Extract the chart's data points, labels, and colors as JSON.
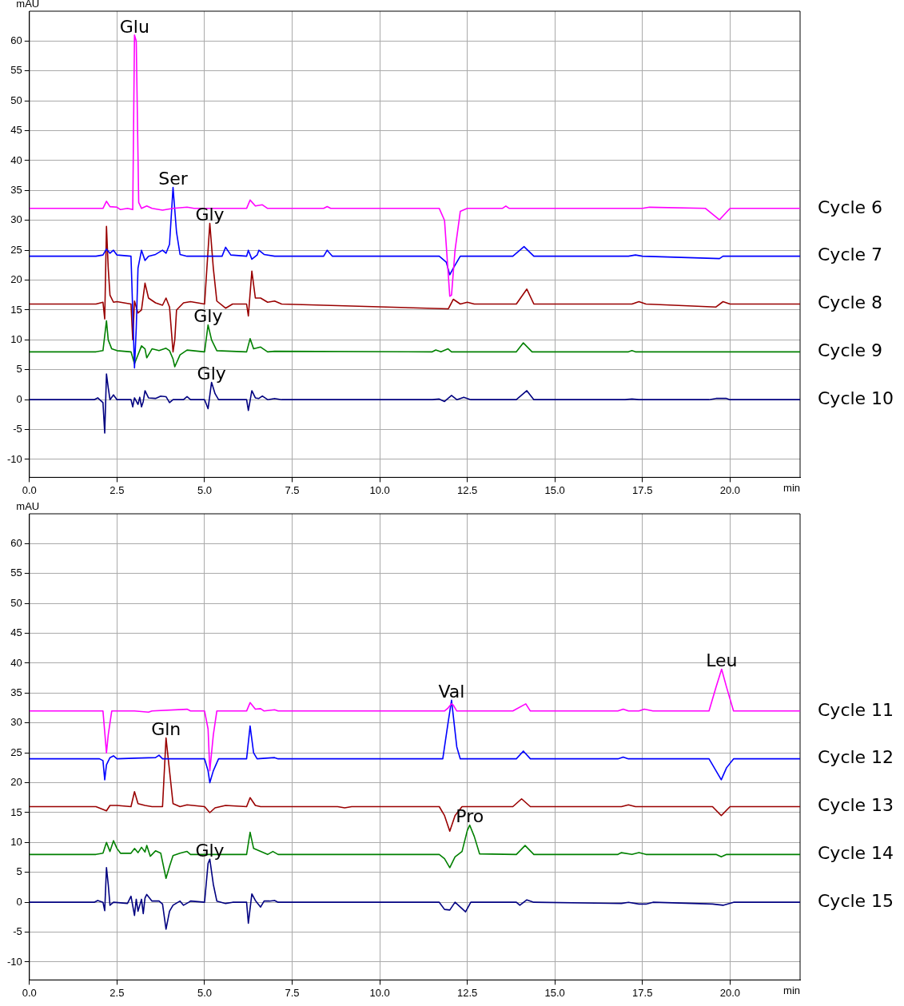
{
  "chart_data": [
    {
      "type": "line",
      "ylabel": "mAU",
      "xlabel": "min",
      "xlim": [
        0,
        22
      ],
      "ylim": [
        -13,
        65
      ],
      "xticks": [
        {
          "value": 0,
          "label": "0.0"
        },
        {
          "value": 2.5,
          "label": "2.5"
        },
        {
          "value": 5,
          "label": "5.0"
        },
        {
          "value": 7.5,
          "label": "7.5"
        },
        {
          "value": 10,
          "label": "10.0"
        },
        {
          "value": 12.5,
          "label": "12.5"
        },
        {
          "value": 15,
          "label": "15.0"
        },
        {
          "value": 17.5,
          "label": "17.5"
        },
        {
          "value": 20,
          "label": "20.0"
        }
      ],
      "yticks": [
        -10,
        -5,
        0,
        5,
        10,
        15,
        20,
        25,
        30,
        35,
        40,
        45,
        50,
        55,
        60
      ],
      "grid": true,
      "legend": false,
      "marker": "none",
      "line_style": "solid",
      "annotations": [
        {
          "text": "Glu",
          "x": 3.0,
          "y": 61
        },
        {
          "text": "Ser",
          "x": 4.1,
          "y": 35.5
        },
        {
          "text": "Gly",
          "x": 5.15,
          "y": 29.5
        },
        {
          "text": "Gly",
          "x": 5.1,
          "y": 12.5
        },
        {
          "text": "Gly",
          "x": 5.2,
          "y": 2.9
        }
      ],
      "series": [
        {
          "name": "Cycle 6",
          "color": "#ff00ff",
          "x": [
            0,
            2.1,
            2.2,
            2.3,
            2.5,
            2.6,
            2.8,
            2.95,
            3.0,
            3.05,
            3.12,
            3.2,
            3.35,
            3.5,
            3.8,
            4.1,
            4.5,
            4.7,
            6.2,
            6.3,
            6.45,
            6.55,
            6.65,
            6.8,
            8.4,
            8.5,
            8.6,
            11.7,
            11.85,
            12.0,
            12.05,
            12.15,
            12.3,
            12.5,
            13.5,
            13.6,
            13.7,
            17.5,
            17.7,
            19.3,
            19.7,
            20.0,
            22
          ],
          "values": [
            32,
            32,
            33.2,
            32.3,
            32.2,
            31.8,
            32,
            31.8,
            61,
            60,
            33,
            32,
            32.4,
            32,
            31.7,
            32,
            32.2,
            32,
            32,
            33.4,
            32.4,
            32.5,
            32.6,
            32,
            32,
            32.3,
            32,
            32,
            30,
            17.3,
            17.5,
            25,
            31.5,
            32,
            32,
            32.4,
            32,
            32,
            32.2,
            32,
            30.1,
            32,
            32
          ]
        },
        {
          "name": "Cycle 7",
          "color": "#0000ff",
          "x": [
            0,
            1.9,
            2.1,
            2.2,
            2.3,
            2.4,
            2.5,
            2.9,
            3.0,
            3.05,
            3.1,
            3.2,
            3.3,
            3.4,
            3.6,
            3.8,
            3.9,
            4.0,
            4.1,
            4.2,
            4.3,
            4.5,
            5.5,
            5.6,
            5.75,
            6.2,
            6.25,
            6.35,
            6.5,
            6.55,
            6.7,
            7.0,
            8.4,
            8.5,
            8.65,
            11.7,
            11.9,
            12.0,
            12.1,
            12.3,
            13.8,
            14.12,
            14.4,
            17.1,
            17.3,
            17.5,
            19.7,
            19.8,
            22
          ],
          "values": [
            24,
            24,
            24.2,
            25.2,
            24.5,
            25,
            24.2,
            24,
            5.3,
            12,
            22,
            25,
            23.3,
            24,
            24.3,
            25,
            24.5,
            26,
            35.5,
            28,
            24.3,
            24,
            24,
            25.5,
            24.2,
            24,
            25,
            23.5,
            24.2,
            25,
            24.3,
            24,
            24,
            25,
            24,
            24,
            23,
            20.9,
            22,
            24,
            24,
            25.6,
            24,
            24,
            24.2,
            24,
            23.6,
            24,
            24
          ]
        },
        {
          "name": "Cycle 8",
          "color": "#990000",
          "x": [
            0,
            1.9,
            2.1,
            2.15,
            2.2,
            2.25,
            2.3,
            2.4,
            2.5,
            2.9,
            2.95,
            3.0,
            3.1,
            3.2,
            3.3,
            3.4,
            3.6,
            3.8,
            3.9,
            4.0,
            4.1,
            4.15,
            4.2,
            4.4,
            4.6,
            5.0,
            5.15,
            5.25,
            5.35,
            5.6,
            5.8,
            6.2,
            6.25,
            6.35,
            6.45,
            6.6,
            6.8,
            7.0,
            7.2,
            11.96,
            12.1,
            12.3,
            12.5,
            12.7,
            13.9,
            14.2,
            14.4,
            17.2,
            17.4,
            17.6,
            19.6,
            19.8,
            20.0,
            22
          ],
          "values": [
            16,
            16,
            16.3,
            13.5,
            29,
            22,
            17.5,
            16.3,
            16.4,
            16,
            10,
            16.5,
            14.5,
            15,
            19.5,
            17,
            16.2,
            15.8,
            17,
            15.5,
            8,
            10,
            15,
            16.2,
            16.4,
            16,
            29.5,
            22,
            16.5,
            15.3,
            16,
            16,
            14,
            21.5,
            17,
            17,
            16.3,
            16.5,
            16,
            15.2,
            16.8,
            16,
            16.3,
            16,
            16,
            18.5,
            16,
            16,
            16.4,
            16,
            15.5,
            16.4,
            16,
            16
          ]
        },
        {
          "name": "Cycle 9",
          "color": "#008000",
          "x": [
            0,
            1.9,
            2.1,
            2.2,
            2.25,
            2.35,
            2.5,
            2.9,
            3.0,
            3.1,
            3.2,
            3.3,
            3.35,
            3.5,
            3.7,
            3.9,
            4.0,
            4.1,
            4.15,
            4.3,
            4.5,
            5.0,
            5.1,
            5.2,
            5.35,
            6.2,
            6.3,
            6.4,
            6.6,
            6.8,
            7.0,
            11.5,
            11.6,
            11.75,
            11.95,
            12.05,
            12.2,
            13.9,
            14.1,
            14.35,
            17.1,
            17.2,
            17.3,
            22
          ],
          "values": [
            8,
            8,
            8.2,
            13.2,
            10,
            8.5,
            8.2,
            8,
            6,
            7.5,
            9,
            8.5,
            7,
            8.5,
            8.2,
            8.6,
            8.2,
            6.8,
            5.5,
            7.5,
            8.3,
            8,
            12.5,
            10,
            8.2,
            8,
            10.2,
            8.5,
            8.8,
            8,
            8.1,
            8,
            8.3,
            8,
            8.5,
            8,
            8,
            8,
            9.5,
            8,
            8,
            8.2,
            8,
            8
          ]
        },
        {
          "name": "Cycle 10",
          "color": "#000080",
          "x": [
            0,
            1.85,
            1.95,
            2.1,
            2.15,
            2.2,
            2.25,
            2.3,
            2.4,
            2.5,
            2.9,
            2.95,
            3.0,
            3.1,
            3.15,
            3.2,
            3.25,
            3.3,
            3.4,
            3.6,
            3.75,
            3.9,
            4.0,
            4.1,
            4.4,
            4.5,
            4.6,
            5.0,
            5.1,
            5.2,
            5.3,
            5.4,
            6.2,
            6.25,
            6.35,
            6.45,
            6.55,
            6.65,
            6.8,
            7.0,
            7.2,
            11.5,
            11.7,
            11.85,
            12.05,
            12.2,
            12.4,
            12.6,
            13.9,
            14.2,
            14.4,
            17.0,
            17.2,
            17.4,
            19.4,
            19.6,
            19.9,
            20.0,
            22
          ],
          "values": [
            0,
            0,
            0.3,
            -0.5,
            -5.6,
            4.3,
            2,
            0,
            0.8,
            0,
            0,
            -1.2,
            0.3,
            -0.8,
            0.4,
            -1.2,
            -0.3,
            1.5,
            0.3,
            0.2,
            0.6,
            0.5,
            -0.5,
            0,
            0,
            0.5,
            0,
            0,
            -1.5,
            2.9,
            1,
            0,
            0,
            -1.8,
            1.5,
            0.3,
            0.2,
            0.6,
            0,
            0.2,
            0,
            0,
            0.1,
            -0.3,
            0.7,
            0,
            0.4,
            0,
            0,
            1.5,
            0,
            0,
            0.1,
            0,
            0,
            0.2,
            0.2,
            0,
            0
          ]
        }
      ]
    },
    {
      "type": "line",
      "ylabel": "mAU",
      "xlabel": "min",
      "xlim": [
        0,
        22
      ],
      "ylim": [
        -13,
        65
      ],
      "xticks": [
        {
          "value": 0,
          "label": "0.0"
        },
        {
          "value": 2.5,
          "label": "2.5"
        },
        {
          "value": 5,
          "label": "5.0"
        },
        {
          "value": 7.5,
          "label": "7.5"
        },
        {
          "value": 10,
          "label": "10.0"
        },
        {
          "value": 12.5,
          "label": "12.5"
        },
        {
          "value": 15,
          "label": "15.0"
        },
        {
          "value": 17.5,
          "label": "17.5"
        },
        {
          "value": 20,
          "label": "20.0"
        }
      ],
      "yticks": [
        -10,
        -5,
        0,
        5,
        10,
        15,
        20,
        25,
        30,
        35,
        40,
        45,
        50,
        55,
        60
      ],
      "grid": true,
      "legend": false,
      "marker": "none",
      "line_style": "solid",
      "annotations": [
        {
          "text": "Gln",
          "x": 3.9,
          "y": 27.5
        },
        {
          "text": "Gly",
          "x": 5.15,
          "y": 7.2
        },
        {
          "text": "Val",
          "x": 12.05,
          "y": 33.8
        },
        {
          "text": "Pro",
          "x": 12.57,
          "y": 12.9
        },
        {
          "text": "Leu",
          "x": 19.76,
          "y": 39
        }
      ],
      "series": [
        {
          "name": "Cycle 11",
          "color": "#ff00ff",
          "x": [
            0,
            2.1,
            2.2,
            2.25,
            2.35,
            2.5,
            3.0,
            3.4,
            3.5,
            4.5,
            4.6,
            5.0,
            5.1,
            5.15,
            5.25,
            5.35,
            6.2,
            6.3,
            6.45,
            6.6,
            6.7,
            7.0,
            7.1,
            11.85,
            11.95,
            12.05,
            12.1,
            12.2,
            13.8,
            14.17,
            14.3,
            16.8,
            16.95,
            17.1,
            17.4,
            17.55,
            17.8,
            19.4,
            19.6,
            19.76,
            19.9,
            20.1,
            22
          ],
          "values": [
            32,
            32,
            25,
            28,
            32,
            32,
            32,
            31.8,
            32,
            32.3,
            32,
            32,
            29,
            22,
            28,
            32,
            32,
            33.4,
            32.3,
            32.4,
            32,
            32.2,
            32,
            32,
            32.5,
            33.2,
            33,
            32,
            32,
            33.2,
            32,
            32,
            32.3,
            32,
            32,
            32.3,
            32,
            32,
            36,
            39,
            36,
            32,
            32
          ]
        },
        {
          "name": "Cycle 12",
          "color": "#0000ff",
          "x": [
            0,
            2.0,
            2.1,
            2.15,
            2.2,
            2.3,
            2.4,
            2.5,
            3.0,
            3.6,
            3.7,
            3.8,
            5.0,
            5.1,
            5.15,
            5.25,
            5.4,
            6.2,
            6.3,
            6.4,
            6.5,
            7.0,
            7.1,
            11.8,
            11.95,
            12.05,
            12.2,
            12.3,
            13.9,
            14.1,
            14.3,
            16.8,
            16.95,
            17.1,
            19.4,
            19.6,
            19.75,
            19.9,
            20.1,
            22
          ],
          "values": [
            24,
            24,
            23.7,
            20.5,
            23,
            24.2,
            24.5,
            24,
            24.1,
            24.2,
            24.6,
            24,
            24,
            22,
            20,
            22,
            24,
            24,
            29.5,
            25,
            24,
            24.2,
            24,
            24,
            30,
            33.8,
            26,
            24,
            24,
            25.3,
            24,
            24,
            24.3,
            24,
            24,
            22,
            20.5,
            22.5,
            24,
            24
          ]
        },
        {
          "name": "Cycle 13",
          "color": "#990000",
          "x": [
            0,
            1.9,
            2.2,
            2.3,
            2.5,
            2.9,
            3.0,
            3.1,
            3.3,
            3.5,
            3.8,
            3.9,
            4.0,
            4.1,
            4.3,
            4.5,
            5.0,
            5.15,
            5.3,
            5.6,
            6.2,
            6.3,
            6.45,
            6.6,
            8.8,
            9.0,
            9.2,
            11.7,
            11.85,
            12.0,
            12.15,
            12.35,
            13.8,
            14.05,
            14.3,
            16.9,
            17.1,
            17.3,
            19.5,
            19.75,
            20.0,
            22
          ],
          "values": [
            16,
            16,
            15.3,
            16.2,
            16.2,
            16,
            18.5,
            16.5,
            16.2,
            16,
            16,
            27.5,
            22,
            16.5,
            16,
            16.3,
            16,
            15,
            15.8,
            16.2,
            16,
            17.5,
            16.2,
            16,
            16,
            15.8,
            16,
            16,
            14.5,
            11.9,
            14.5,
            16,
            16,
            17.3,
            16,
            16,
            16.3,
            16,
            16,
            14.5,
            16,
            16
          ]
        },
        {
          "name": "Cycle 14",
          "color": "#008000",
          "x": [
            0,
            1.9,
            2.1,
            2.2,
            2.3,
            2.4,
            2.5,
            2.6,
            2.9,
            3.0,
            3.1,
            3.2,
            3.3,
            3.35,
            3.45,
            3.6,
            3.75,
            3.9,
            4.0,
            4.1,
            4.3,
            4.5,
            4.6,
            5.0,
            5.3,
            6.2,
            6.3,
            6.4,
            6.6,
            6.8,
            6.95,
            7.1,
            11.7,
            11.85,
            12.0,
            12.15,
            12.35,
            12.5,
            12.57,
            12.7,
            12.85,
            13.9,
            14.15,
            14.4,
            16.8,
            16.9,
            17.2,
            17.4,
            17.6,
            19.6,
            19.75,
            19.9,
            22
          ],
          "values": [
            8,
            8,
            8.2,
            10,
            8.5,
            10.3,
            9,
            8.2,
            8.2,
            9,
            8.3,
            9.2,
            8.4,
            9.5,
            7.7,
            8.6,
            8.2,
            4,
            6,
            7.8,
            8.2,
            8.5,
            8,
            8,
            8,
            8,
            11.7,
            9,
            8.5,
            8,
            8.5,
            8,
            8,
            7.3,
            5.8,
            7.6,
            8.5,
            12,
            12.9,
            11,
            8.1,
            8,
            9.5,
            8,
            8,
            8.3,
            8,
            8.3,
            8,
            8,
            7.6,
            8,
            8
          ]
        },
        {
          "name": "Cycle 15",
          "color": "#000080",
          "x": [
            0,
            1.85,
            1.95,
            2.1,
            2.15,
            2.2,
            2.25,
            2.3,
            2.4,
            2.8,
            2.9,
            3.0,
            3.05,
            3.1,
            3.2,
            3.25,
            3.3,
            3.35,
            3.5,
            3.7,
            3.8,
            3.9,
            4.0,
            4.1,
            4.3,
            4.4,
            4.55,
            4.6,
            5.0,
            5.1,
            5.15,
            5.25,
            5.35,
            5.6,
            5.8,
            6.2,
            6.25,
            6.35,
            6.45,
            6.6,
            6.7,
            6.85,
            7.0,
            7.1,
            11.7,
            11.85,
            12.0,
            12.15,
            12.3,
            12.45,
            12.6,
            13.9,
            14.0,
            14.2,
            14.4,
            16.9,
            17.1,
            17.4,
            17.6,
            17.8,
            19.5,
            19.8,
            20.1,
            22
          ],
          "values": [
            0,
            0,
            0.3,
            0,
            -1.4,
            5.8,
            3,
            -0.5,
            0,
            -0.2,
            1,
            -2.2,
            0.5,
            -1.5,
            0.5,
            -1.9,
            0.7,
            1.3,
            0.2,
            0.2,
            -0.3,
            -4.5,
            -1.5,
            -0.5,
            0.2,
            -0.5,
            0,
            0.2,
            0,
            6.5,
            7.2,
            3,
            0.2,
            -0.2,
            0,
            0,
            -3.5,
            1.4,
            0.3,
            -0.8,
            0.2,
            0.2,
            0.3,
            0,
            0,
            -1.2,
            -1.3,
            0,
            -0.8,
            -1.6,
            0,
            0,
            -0.5,
            0.4,
            0,
            -0.2,
            0,
            -0.3,
            -0.3,
            0,
            -0.3,
            -0.5,
            0,
            0
          ]
        }
      ]
    }
  ]
}
